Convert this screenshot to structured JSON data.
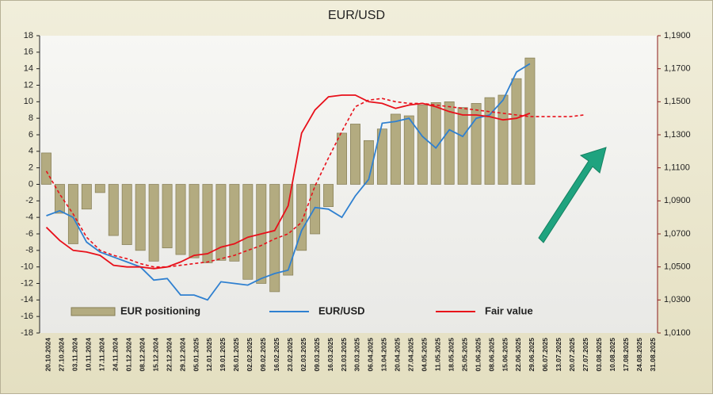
{
  "chart_data": {
    "type": "bar",
    "title": "EUR/USD",
    "categories": [
      "20.10.2024",
      "27.10.2024",
      "03.11.2024",
      "10.11.2024",
      "17.11.2024",
      "24.11.2024",
      "01.12.2024",
      "08.12.2024",
      "15.12.2024",
      "22.12.2024",
      "29.12.2024",
      "05.01.2025",
      "12.01.2025",
      "19.01.2025",
      "26.01.2025",
      "02.02.2025",
      "09.02.2025",
      "16.02.2025",
      "23.02.2025",
      "02.03.2025",
      "09.03.2025",
      "16.03.2025",
      "23.03.2025",
      "30.03.2025",
      "06.04.2025",
      "13.04.2025",
      "20.04.2025",
      "27.04.2025",
      "04.05.2025",
      "11.05.2025",
      "18.05.2025",
      "25.05.2025",
      "01.06.2025",
      "08.06.2025",
      "15.06.2025",
      "22.06.2025",
      "29.06.2025",
      "06.07.2025",
      "13.07.2025",
      "20.07.2025",
      "27.07.2025",
      "03.08.2025",
      "10.08.2025",
      "17.08.2025",
      "24.08.2025",
      "31.08.2025"
    ],
    "series": [
      {
        "name": "EUR positioning",
        "type": "bar",
        "color": "#b3ab80",
        "values": [
          3.8,
          -3.5,
          -7.2,
          -3,
          -1,
          -6.2,
          -7.3,
          -8,
          -9.3,
          -7.7,
          -8.5,
          -8.9,
          -9.5,
          -9.2,
          -9.3,
          -11.5,
          -12,
          -13,
          -11,
          -8,
          -6,
          -2.7,
          6.2,
          7.3,
          5.3,
          6.7,
          8.5,
          8.3,
          9.6,
          9.9,
          10,
          9.3,
          9.8,
          10.5,
          10.8,
          12.8,
          15.3,
          null,
          null,
          null,
          null,
          null,
          null,
          null,
          null,
          null
        ]
      },
      {
        "name": "EUR/USD",
        "type": "line",
        "axis": "y2",
        "color": "#2f80d0",
        "values": [
          1.081,
          1.084,
          1.08,
          1.065,
          1.059,
          1.056,
          1.053,
          1.05,
          1.042,
          1.043,
          1.033,
          1.033,
          1.03,
          1.041,
          1.04,
          1.039,
          1.043,
          1.046,
          1.048,
          1.072,
          1.086,
          1.085,
          1.08,
          1.093,
          1.103,
          1.137,
          1.138,
          1.14,
          1.129,
          1.122,
          1.133,
          1.129,
          1.14,
          1.142,
          1.151,
          1.168,
          1.173,
          null,
          null,
          null,
          null,
          null,
          null,
          null,
          null,
          null
        ]
      },
      {
        "name": "Fair value",
        "type": "line",
        "axis": "y2",
        "color": "#e8101a",
        "values": [
          1.074,
          1.066,
          1.06,
          1.059,
          1.057,
          1.051,
          1.05,
          1.05,
          1.049,
          1.05,
          1.053,
          1.057,
          1.058,
          1.062,
          1.064,
          1.068,
          1.07,
          1.072,
          1.087,
          1.131,
          1.145,
          1.153,
          1.154,
          1.154,
          1.15,
          1.149,
          1.146,
          1.148,
          1.149,
          1.147,
          1.144,
          1.142,
          1.142,
          1.141,
          1.139,
          1.14,
          1.143,
          null,
          null,
          null,
          null,
          null,
          null,
          null,
          null,
          null
        ]
      },
      {
        "type": "line",
        "axis": "y2",
        "color": "#e8101a",
        "dashed": true,
        "values": [
          1.108,
          1.094,
          1.082,
          1.068,
          1.06,
          1.057,
          1.055,
          1.052,
          1.05,
          1.05,
          1.051,
          1.052,
          1.053,
          1.055,
          1.057,
          1.06,
          1.063,
          1.067,
          1.07,
          1.077,
          1.099,
          1.116,
          1.132,
          1.147,
          1.151,
          1.152,
          1.15,
          1.149,
          1.149,
          1.148,
          1.147,
          1.146,
          1.145,
          1.144,
          1.143,
          1.142,
          1.141,
          1.141,
          1.141,
          1.141,
          1.142,
          null,
          null,
          null,
          null,
          null
        ]
      }
    ],
    "ylim": [
      -18,
      18
    ],
    "yticks": [
      -18,
      -16,
      -14,
      -12,
      -10,
      -8,
      -6,
      -4,
      -2,
      0,
      2,
      4,
      6,
      8,
      10,
      12,
      14,
      16,
      18
    ],
    "y2lim": [
      1.01,
      1.19
    ],
    "y2ticks": [
      {
        "value": 1.01,
        "label": "1,0100"
      },
      {
        "value": 1.03,
        "label": "1,0300"
      },
      {
        "value": 1.05,
        "label": "1,0500"
      },
      {
        "value": 1.07,
        "label": "1,0700"
      },
      {
        "value": 1.09,
        "label": "1,0900"
      },
      {
        "value": 1.11,
        "label": "1,1100"
      },
      {
        "value": 1.13,
        "label": "1,1300"
      },
      {
        "value": 1.15,
        "label": "1,1500"
      },
      {
        "value": 1.17,
        "label": "1,1700"
      },
      {
        "value": 1.19,
        "label": "1,1900"
      }
    ],
    "legend": "bottom"
  }
}
